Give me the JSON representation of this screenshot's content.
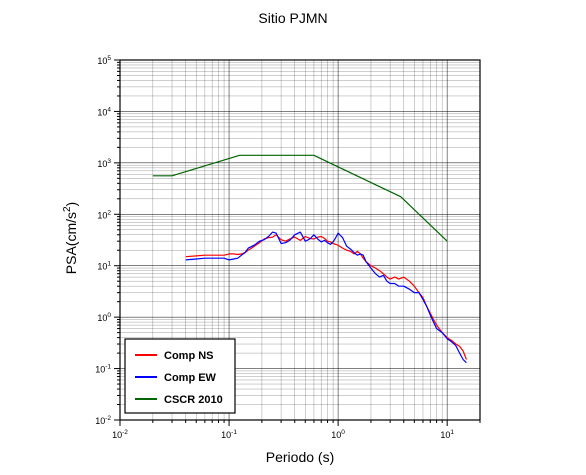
{
  "chart_data": {
    "type": "line",
    "title": "Sitio PJMN",
    "xlabel": "Periodo (s)",
    "ylabel": {
      "base": "PSA(cm/s",
      "sup": "2",
      "end": ")"
    },
    "xscale": "log",
    "yscale": "log",
    "xlim": [
      0.01,
      20
    ],
    "ylim": [
      0.01,
      100000
    ],
    "grid": true,
    "legend_position": "bottom-left",
    "x_ticks": [
      {
        "value": 0.01,
        "base": "10",
        "exp": "-2"
      },
      {
        "value": 0.1,
        "base": "10",
        "exp": "-1"
      },
      {
        "value": 1,
        "base": "10",
        "exp": "0"
      },
      {
        "value": 10,
        "base": "10",
        "exp": "1"
      }
    ],
    "y_ticks": [
      {
        "value": 0.01,
        "base": "10",
        "exp": "-2"
      },
      {
        "value": 0.1,
        "base": "10",
        "exp": "-1"
      },
      {
        "value": 1,
        "base": "10",
        "exp": "0"
      },
      {
        "value": 10,
        "base": "10",
        "exp": "1"
      },
      {
        "value": 100,
        "base": "10",
        "exp": "2"
      },
      {
        "value": 1000,
        "base": "10",
        "exp": "3"
      },
      {
        "value": 10000,
        "base": "10",
        "exp": "4"
      },
      {
        "value": 100000,
        "base": "10",
        "exp": "5"
      }
    ],
    "series": [
      {
        "name": "Comp NS",
        "color": "#ff0000",
        "x": [
          0.04,
          0.05,
          0.06,
          0.07,
          0.08,
          0.09,
          0.1,
          0.11,
          0.12,
          0.13,
          0.14,
          0.15,
          0.17,
          0.19,
          0.21,
          0.23,
          0.25,
          0.27,
          0.3,
          0.33,
          0.36,
          0.4,
          0.45,
          0.5,
          0.55,
          0.6,
          0.65,
          0.7,
          0.75,
          0.8,
          0.85,
          0.9,
          0.95,
          1.0,
          1.1,
          1.2,
          1.3,
          1.4,
          1.5,
          1.6,
          1.7,
          1.8,
          2.0,
          2.2,
          2.4,
          2.6,
          2.8,
          3.0,
          3.3,
          3.6,
          4.0,
          4.5,
          5.0,
          5.5,
          6.0,
          6.5,
          7.0,
          7.5,
          8.0,
          9.0,
          10.0,
          11.0,
          12.0,
          13.0,
          14.0,
          15.0
        ],
        "y": [
          15,
          15.5,
          16,
          16,
          16,
          16,
          17,
          17,
          16.5,
          17,
          18,
          20,
          24,
          28,
          33,
          35,
          36,
          40,
          32,
          30,
          33,
          36,
          31,
          37,
          34,
          33,
          36,
          37,
          34,
          30,
          29,
          27,
          26,
          25,
          22,
          20,
          19,
          17,
          19,
          17,
          14,
          12,
          10,
          9,
          8,
          7,
          6,
          5.5,
          6,
          5.5,
          6,
          5,
          4,
          3,
          2.4,
          1.6,
          1.2,
          0.9,
          0.7,
          0.5,
          0.4,
          0.35,
          0.3,
          0.27,
          0.22,
          0.15
        ]
      },
      {
        "name": "Comp EW",
        "color": "#0000ff",
        "x": [
          0.04,
          0.05,
          0.06,
          0.07,
          0.08,
          0.09,
          0.1,
          0.11,
          0.12,
          0.13,
          0.14,
          0.15,
          0.17,
          0.19,
          0.21,
          0.23,
          0.25,
          0.27,
          0.3,
          0.33,
          0.36,
          0.4,
          0.45,
          0.5,
          0.55,
          0.6,
          0.65,
          0.7,
          0.75,
          0.8,
          0.85,
          0.9,
          0.95,
          1.0,
          1.1,
          1.2,
          1.3,
          1.4,
          1.5,
          1.6,
          1.7,
          1.8,
          2.0,
          2.2,
          2.4,
          2.6,
          2.8,
          3.0,
          3.3,
          3.6,
          4.0,
          4.5,
          5.0,
          5.5,
          6.0,
          6.5,
          7.0,
          7.5,
          8.0,
          9.0,
          10.0,
          11.0,
          12.0,
          13.0,
          14.0,
          15.0
        ],
        "y": [
          13,
          13.5,
          14,
          14,
          14,
          14,
          13,
          13.5,
          14,
          16,
          18,
          22,
          25,
          30,
          32,
          37,
          45,
          43,
          27,
          28,
          31,
          40,
          45,
          30,
          33,
          40,
          33,
          29,
          31,
          28,
          26,
          29,
          35,
          43,
          35,
          24,
          21,
          18,
          16,
          17,
          16,
          12,
          9,
          7,
          6,
          6.5,
          5,
          4.5,
          4.5,
          4,
          4,
          3.5,
          3,
          3,
          2.2,
          1.6,
          1.1,
          0.8,
          0.6,
          0.5,
          0.38,
          0.33,
          0.28,
          0.2,
          0.15,
          0.13
        ]
      },
      {
        "name": "CSCR 2010",
        "color": "#006400",
        "x": [
          0.02,
          0.03,
          0.125,
          0.6,
          3.75,
          10.0
        ],
        "y": [
          560,
          560,
          1400,
          1400,
          220,
          30
        ]
      }
    ]
  }
}
